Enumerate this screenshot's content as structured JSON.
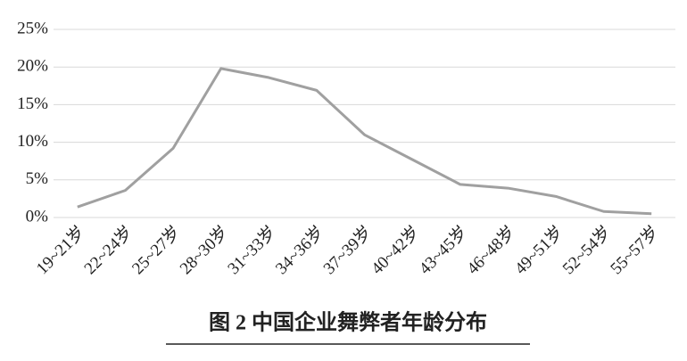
{
  "chart_data": {
    "type": "line",
    "title": "图 2  中国企业舞弊者年龄分布",
    "categories": [
      "19~21岁",
      "22~24岁",
      "25~27岁",
      "28~30岁",
      "31~33岁",
      "34~36岁",
      "37~39岁",
      "40~42岁",
      "43~45岁",
      "46~48岁",
      "49~51岁",
      "52~54岁",
      "55~57岁"
    ],
    "series": [
      {
        "color": "#a0a0a0",
        "values": [
          1.4,
          3.6,
          9.2,
          19.8,
          18.6,
          16.9,
          11.0,
          7.7,
          4.4,
          3.9,
          2.8,
          0.8,
          0.5
        ]
      }
    ],
    "ylim": [
      0,
      25
    ],
    "yticks": [
      {
        "value": 0,
        "label": "0%"
      },
      {
        "value": 5,
        "label": "5%"
      },
      {
        "value": 10,
        "label": "10%"
      },
      {
        "value": 15,
        "label": "15%"
      },
      {
        "value": 20,
        "label": "20%"
      },
      {
        "value": 25,
        "label": "25%"
      }
    ],
    "grid": true
  }
}
